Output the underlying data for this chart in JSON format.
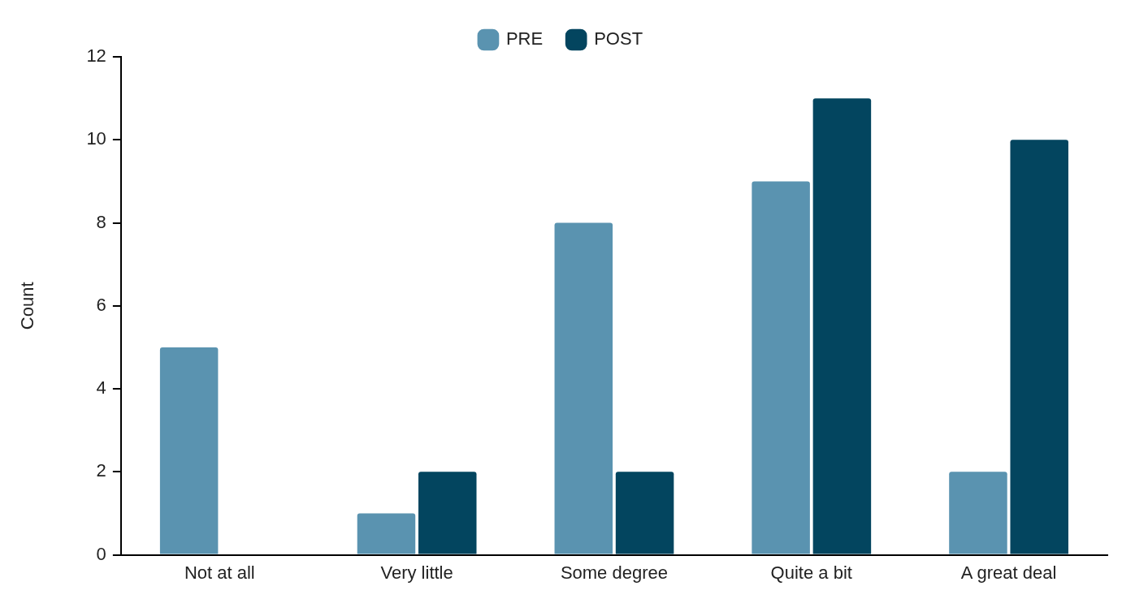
{
  "chart_data": {
    "type": "bar",
    "ylabel": "Count",
    "categories": [
      "Not at all",
      "Very little",
      "Some degree",
      "Quite a bit",
      "A great deal"
    ],
    "series": [
      {
        "name": "PRE",
        "color": "#5a93b0",
        "values": [
          5,
          1,
          8,
          9,
          2
        ]
      },
      {
        "name": "POST",
        "color": "#03455f",
        "values": [
          0,
          2,
          2,
          11,
          10
        ]
      }
    ],
    "ylim": [
      0,
      12
    ],
    "yticks": [
      0,
      2,
      4,
      6,
      8,
      10,
      12
    ],
    "grid": false,
    "legend": "top"
  }
}
